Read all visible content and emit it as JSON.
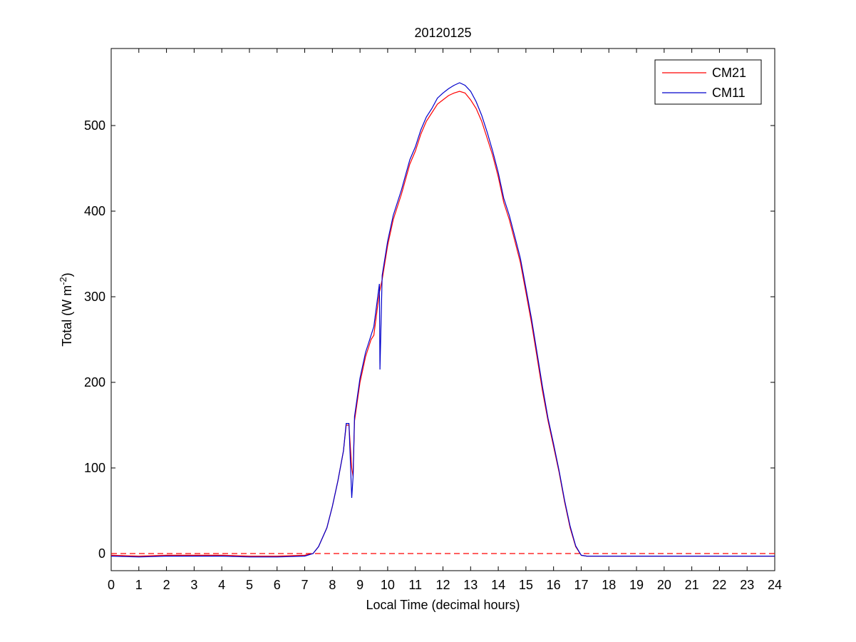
{
  "chart_data": {
    "type": "line",
    "title": "20120125",
    "xlabel": "Local Time (decimal hours)",
    "ylabel": "Total (W m",
    "ylabel_sup": "-2",
    "ylabel_close": ")",
    "xlim": [
      0,
      24
    ],
    "ylim": [
      -20,
      590
    ],
    "xticks": [
      0,
      1,
      2,
      3,
      4,
      5,
      6,
      7,
      8,
      9,
      10,
      11,
      12,
      13,
      14,
      15,
      16,
      17,
      18,
      19,
      20,
      21,
      22,
      23,
      24
    ],
    "yticks": [
      0,
      100,
      200,
      300,
      400,
      500
    ],
    "grid": false,
    "legend_position": "top-right",
    "reference_line": {
      "y": 0,
      "color": "#ff0000",
      "style": "dashed"
    },
    "series": [
      {
        "name": "CM21",
        "color": "#ff0000",
        "x": [
          0,
          1,
          2,
          3,
          4,
          5,
          6,
          7,
          7.3,
          7.5,
          7.8,
          8.0,
          8.2,
          8.4,
          8.5,
          8.6,
          8.7,
          8.75,
          8.8,
          9.0,
          9.2,
          9.3,
          9.4,
          9.5,
          9.6,
          9.7,
          9.8,
          10.0,
          10.2,
          10.5,
          10.8,
          11.0,
          11.2,
          11.4,
          11.6,
          11.8,
          12.0,
          12.2,
          12.4,
          12.6,
          12.8,
          13.0,
          13.2,
          13.4,
          13.6,
          13.8,
          14.0,
          14.2,
          14.4,
          14.6,
          14.8,
          15.0,
          15.2,
          15.4,
          15.6,
          15.8,
          16.0,
          16.2,
          16.4,
          16.6,
          16.8,
          17.0,
          17.2,
          17.4,
          17.6,
          18,
          19,
          20,
          21,
          22,
          23,
          24
        ],
        "y": [
          -2,
          -3,
          -2,
          -2,
          -2,
          -3,
          -3,
          -2,
          0,
          8,
          30,
          55,
          85,
          120,
          150,
          150,
          100,
          90,
          155,
          200,
          230,
          240,
          250,
          255,
          280,
          305,
          320,
          360,
          390,
          420,
          455,
          470,
          490,
          505,
          515,
          525,
          530,
          535,
          538,
          540,
          538,
          530,
          520,
          505,
          485,
          465,
          440,
          410,
          390,
          365,
          340,
          305,
          270,
          230,
          190,
          155,
          125,
          95,
          60,
          30,
          8,
          -2,
          -3,
          -3,
          -3,
          -3,
          -3,
          -3,
          -3,
          -3,
          -3,
          -3
        ]
      },
      {
        "name": "CM11",
        "color": "#0000cc",
        "x": [
          0,
          1,
          2,
          3,
          4,
          5,
          6,
          7,
          7.3,
          7.5,
          7.8,
          8.0,
          8.2,
          8.4,
          8.5,
          8.6,
          8.7,
          8.75,
          8.8,
          9.0,
          9.2,
          9.3,
          9.4,
          9.5,
          9.6,
          9.7,
          9.72,
          9.8,
          10.0,
          10.2,
          10.5,
          10.8,
          11.0,
          11.2,
          11.4,
          11.6,
          11.8,
          12.0,
          12.2,
          12.4,
          12.6,
          12.8,
          13.0,
          13.2,
          13.4,
          13.6,
          13.8,
          14.0,
          14.2,
          14.4,
          14.6,
          14.8,
          15.0,
          15.2,
          15.4,
          15.6,
          15.8,
          16.0,
          16.2,
          16.4,
          16.6,
          16.8,
          17.0,
          17.2,
          17.4,
          17.6,
          18,
          19,
          20,
          21,
          22,
          23,
          24
        ],
        "y": [
          -3,
          -4,
          -3,
          -3,
          -3,
          -4,
          -4,
          -3,
          0,
          8,
          30,
          55,
          85,
          120,
          152,
          152,
          65,
          90,
          160,
          205,
          235,
          245,
          255,
          265,
          290,
          315,
          215,
          325,
          365,
          395,
          425,
          460,
          475,
          495,
          510,
          520,
          532,
          538,
          543,
          547,
          550,
          547,
          540,
          528,
          512,
          492,
          470,
          445,
          415,
          395,
          370,
          345,
          310,
          275,
          235,
          195,
          158,
          128,
          97,
          62,
          32,
          9,
          -2,
          -3,
          -3,
          -3,
          -3,
          -3,
          -3,
          -3,
          -3,
          -3,
          -3
        ]
      }
    ]
  }
}
